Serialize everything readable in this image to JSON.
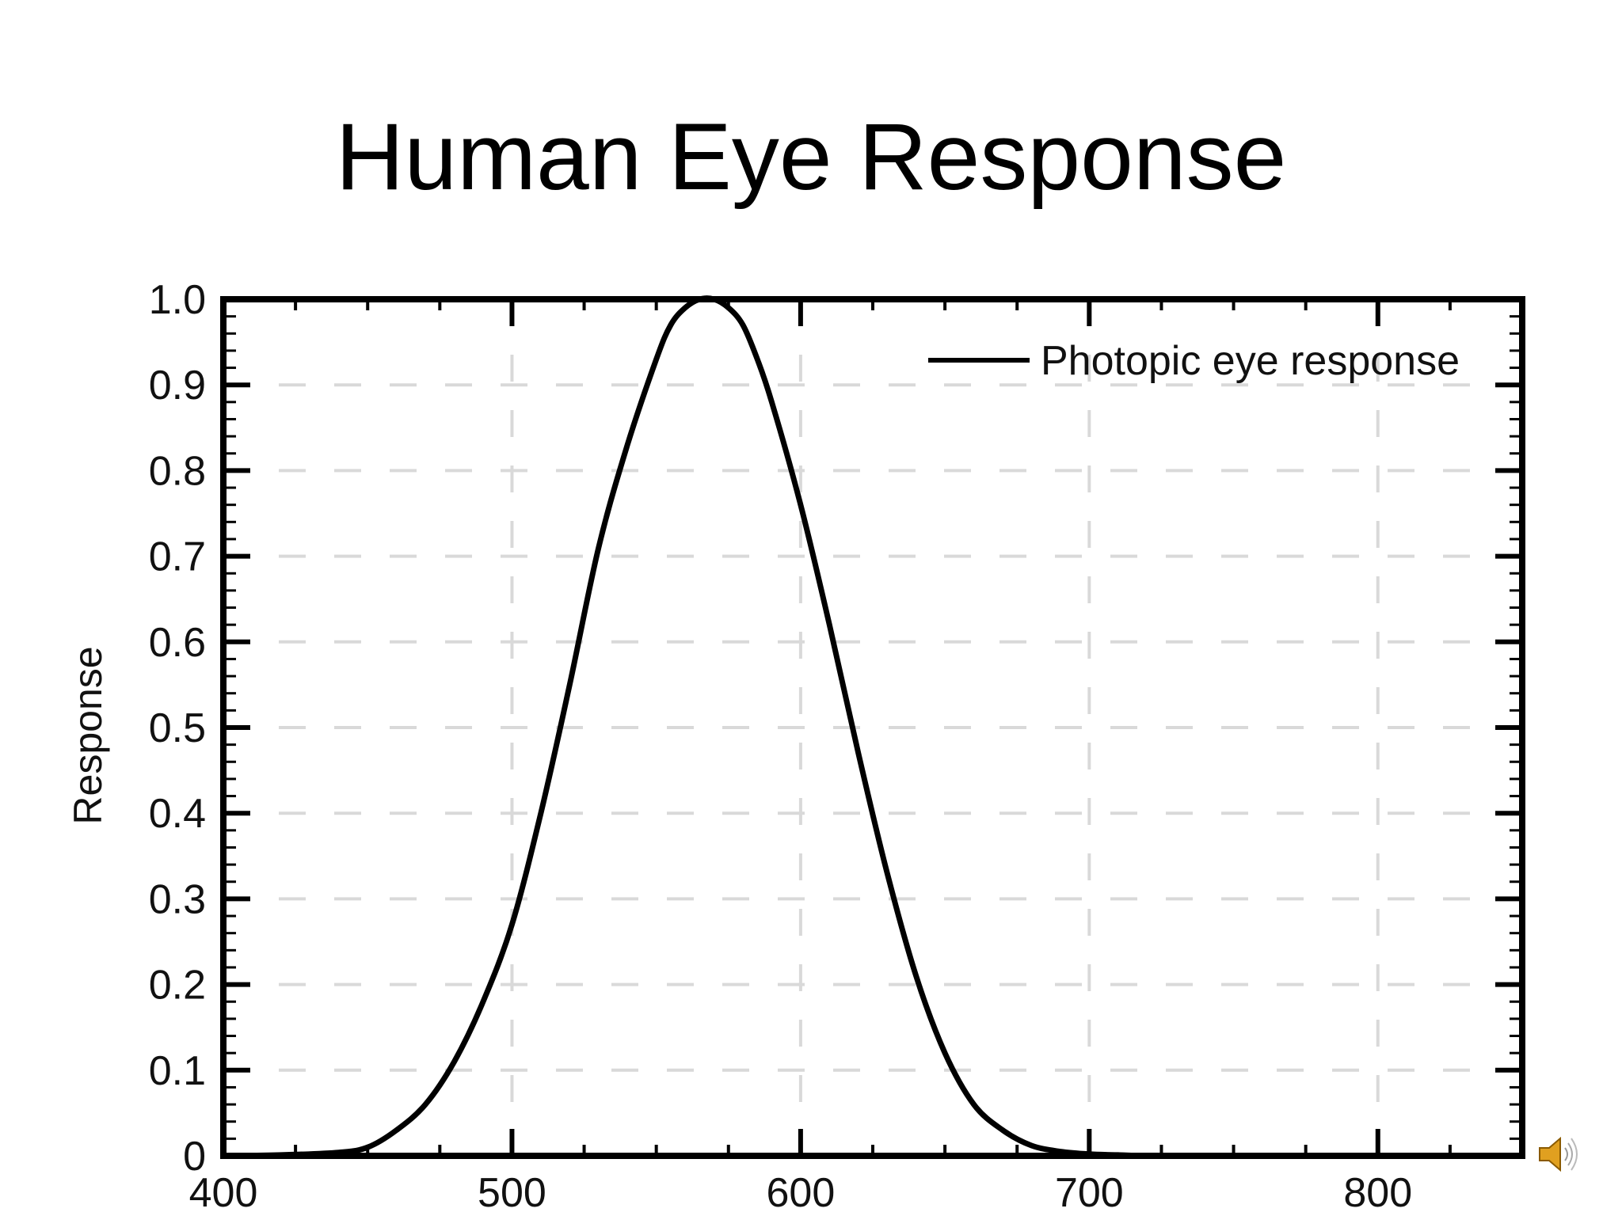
{
  "slide": {
    "title": "Human Eye Response",
    "speaker_icon": "speaker-icon"
  },
  "colors": {
    "curve": "#000000",
    "grid": "#d9d9d9",
    "axis": "#000000",
    "speaker": "#e0a020"
  },
  "chart_data": {
    "type": "line",
    "title": "",
    "xlabel": "",
    "ylabel": "Response",
    "xlim": [
      400,
      850
    ],
    "ylim": [
      0,
      1.0
    ],
    "x_ticks": [
      400,
      500,
      600,
      700,
      800
    ],
    "y_ticks": [
      0,
      0.1,
      0.2,
      0.3,
      0.4,
      0.5,
      0.6,
      0.7,
      0.8,
      0.9,
      1.0
    ],
    "y_tick_labels": [
      "0",
      "0.1",
      "0.2",
      "0.3",
      "0.4",
      "0.5",
      "0.6",
      "0.7",
      "0.8",
      "0.9",
      "1.0"
    ],
    "grid": true,
    "legend_position": "top-right",
    "series": [
      {
        "name": "Photopic eye response",
        "x": [
          400,
          420,
          440,
          450,
          460,
          470,
          480,
          490,
          500,
          510,
          520,
          530,
          540,
          550,
          555,
          560,
          565,
          570,
          575,
          580,
          585,
          590,
          600,
          610,
          620,
          630,
          640,
          650,
          660,
          670,
          680,
          690,
          700,
          710,
          720,
          740,
          760,
          800,
          850
        ],
        "y": [
          0.0,
          0.001,
          0.004,
          0.01,
          0.03,
          0.06,
          0.11,
          0.18,
          0.27,
          0.4,
          0.55,
          0.71,
          0.83,
          0.93,
          0.97,
          0.99,
          1.0,
          1.0,
          0.99,
          0.97,
          0.93,
          0.88,
          0.76,
          0.62,
          0.47,
          0.33,
          0.21,
          0.12,
          0.06,
          0.03,
          0.012,
          0.005,
          0.002,
          0.001,
          0.0,
          0.0,
          0.0,
          0.0,
          0.0
        ]
      }
    ]
  }
}
